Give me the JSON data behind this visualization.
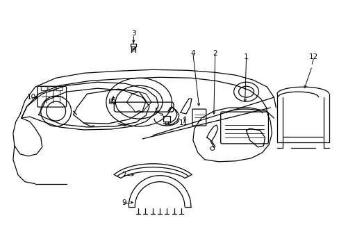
{
  "background_color": "#ffffff",
  "line_color": "#000000",
  "fig_width": 4.89,
  "fig_height": 3.6,
  "dpi": 100,
  "label_fontsize": 7.5,
  "lw": 0.9
}
